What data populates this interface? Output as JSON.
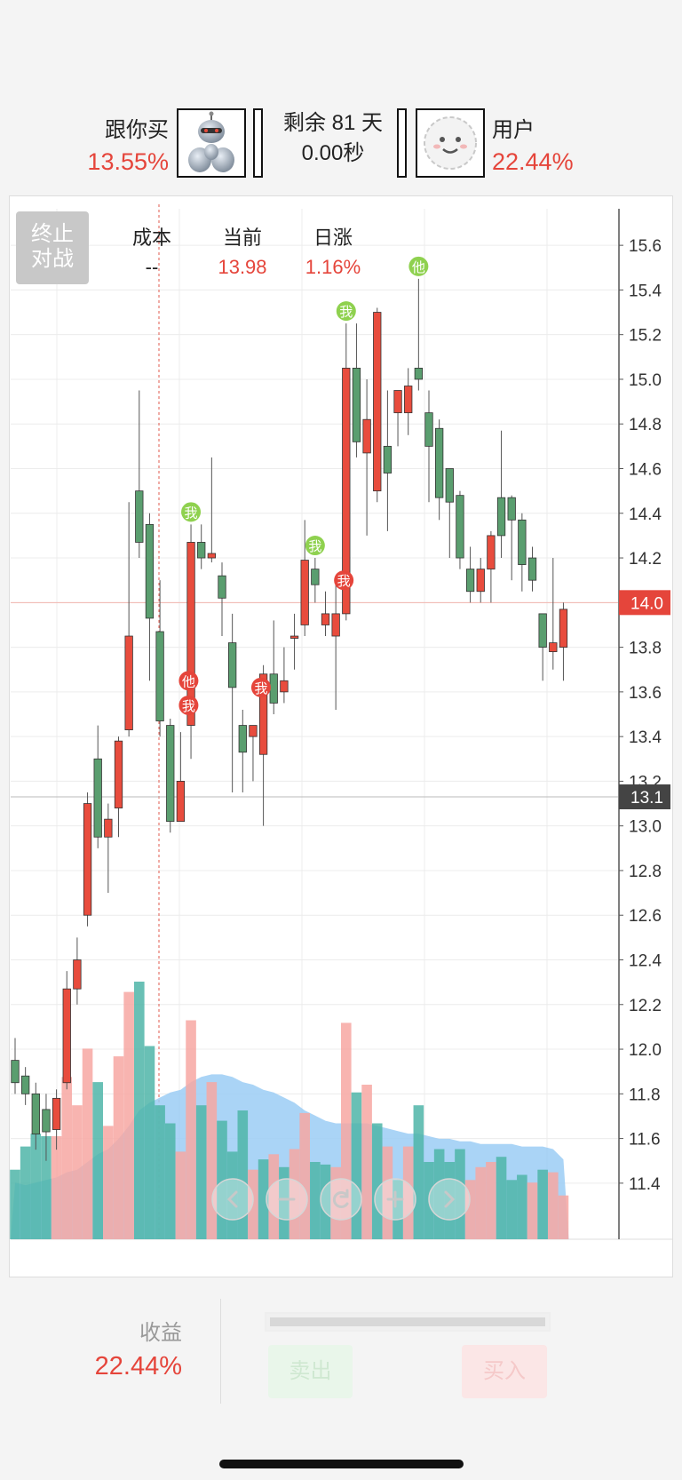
{
  "header": {
    "left_player": {
      "name": "跟你买",
      "return": "13.55%"
    },
    "timer": {
      "days_line": "剩余 81 天",
      "seconds": "0.00秒"
    },
    "right_player": {
      "name": "用户",
      "return": "22.44%"
    }
  },
  "stop_button": {
    "line1": "终止",
    "line2": "对战"
  },
  "stats": [
    {
      "label": "成本",
      "value": "--"
    },
    {
      "label": "当前",
      "value": "13.98"
    },
    {
      "label": "日涨",
      "value": "1.16%"
    }
  ],
  "nav": {
    "prev_icon": "chevron-left-icon",
    "zoom_out_icon": "minus-icon",
    "reset_icon": "refresh-icon",
    "zoom_in_icon": "plus-icon",
    "next_icon": "chevron-right-icon"
  },
  "footer": {
    "profit_label": "收益",
    "profit_value": "22.44%",
    "sell_label": "卖出",
    "buy_label": "买入"
  },
  "colors": {
    "up": "#e84c3d",
    "down": "#5a9e6f",
    "accent_red": "#e5453b",
    "marker_green": "#8fd14f"
  },
  "chart_data": {
    "type": "candlestick",
    "y_range": [
      11.3,
      15.7
    ],
    "y_ticks": [
      "15.6",
      "15.4",
      "15.2",
      "15.0",
      "14.8",
      "14.6",
      "14.4",
      "14.2",
      "14.0",
      "13.8",
      "13.6",
      "13.4",
      "13.2",
      "13.0",
      "12.8",
      "12.6",
      "12.4",
      "12.2",
      "12.0",
      "11.8",
      "11.6",
      "11.4"
    ],
    "current_price_label": "14.0",
    "current_price": 14.0,
    "reference_price_label": "13.1",
    "reference_price": 13.13,
    "ohlc": [
      [
        11.95,
        11.85,
        12.05,
        11.8
      ],
      [
        11.88,
        11.8,
        11.92,
        11.75
      ],
      [
        11.8,
        11.62,
        11.85,
        11.55
      ],
      [
        11.73,
        11.63,
        11.8,
        11.5
      ],
      [
        11.64,
        11.78,
        11.82,
        11.55
      ],
      [
        11.85,
        12.27,
        12.35,
        11.82
      ],
      [
        12.27,
        12.4,
        12.5,
        12.2
      ],
      [
        12.6,
        13.1,
        13.15,
        12.55
      ],
      [
        13.3,
        12.95,
        13.45,
        12.9
      ],
      [
        12.95,
        13.03,
        13.1,
        12.7
      ],
      [
        13.08,
        13.38,
        13.4,
        12.95
      ],
      [
        13.43,
        13.85,
        14.45,
        13.4
      ],
      [
        14.5,
        14.27,
        14.95,
        14.2
      ],
      [
        14.35,
        13.93,
        14.4,
        13.65
      ],
      [
        13.87,
        13.47,
        14.1,
        13.4
      ],
      [
        13.45,
        13.02,
        13.48,
        12.97
      ],
      [
        13.02,
        13.2,
        13.42,
        13.05
      ],
      [
        13.45,
        14.27,
        14.35,
        13.3
      ],
      [
        14.27,
        14.2,
        14.35,
        14.15
      ],
      [
        14.2,
        14.22,
        14.65,
        14.18
      ],
      [
        14.12,
        14.02,
        14.18,
        13.85
      ],
      [
        13.82,
        13.62,
        13.95,
        13.15
      ],
      [
        13.45,
        13.33,
        13.52,
        13.15
      ],
      [
        13.4,
        13.45,
        13.45,
        13.2
      ],
      [
        13.32,
        13.68,
        13.72,
        13.0
      ],
      [
        13.68,
        13.55,
        13.92,
        13.5
      ],
      [
        13.6,
        13.65,
        13.8,
        13.55
      ],
      [
        13.84,
        13.85,
        13.95,
        13.7
      ],
      [
        13.9,
        14.19,
        14.37,
        13.85
      ],
      [
        14.15,
        14.08,
        14.2,
        14.0
      ],
      [
        13.9,
        13.95,
        14.05,
        13.85
      ],
      [
        13.85,
        13.95,
        14.1,
        13.52
      ],
      [
        13.95,
        15.05,
        15.25,
        13.92
      ],
      [
        15.05,
        14.72,
        15.25,
        14.65
      ],
      [
        14.67,
        14.82,
        15.0,
        14.3
      ],
      [
        14.5,
        15.3,
        15.32,
        14.45
      ],
      [
        14.7,
        14.58,
        14.95,
        14.32
      ],
      [
        14.85,
        14.95,
        14.95,
        14.7
      ],
      [
        14.85,
        14.97,
        15.05,
        14.75
      ],
      [
        15.05,
        15.0,
        15.45,
        14.95
      ],
      [
        14.85,
        14.7,
        14.95,
        14.45
      ],
      [
        14.78,
        14.47,
        14.82,
        14.37
      ],
      [
        14.6,
        14.45,
        14.58,
        14.2
      ],
      [
        14.48,
        14.2,
        14.5,
        14.15
      ],
      [
        14.15,
        14.05,
        14.25,
        14.0
      ],
      [
        14.05,
        14.15,
        14.2,
        14.0
      ],
      [
        14.15,
        14.3,
        14.32,
        14.0
      ],
      [
        14.47,
        14.3,
        14.77,
        14.2
      ],
      [
        14.47,
        14.37,
        14.48,
        14.1
      ],
      [
        14.37,
        14.17,
        14.4,
        14.05
      ],
      [
        14.2,
        14.1,
        14.25,
        14.05
      ],
      [
        13.95,
        13.8,
        13.95,
        13.65
      ],
      [
        13.78,
        13.82,
        14.2,
        13.7
      ],
      [
        13.8,
        13.97,
        14.0,
        13.65
      ]
    ],
    "volume_bars": [
      {
        "v": 0.27,
        "up": false
      },
      {
        "v": 0.36,
        "up": false
      },
      {
        "v": 0.41,
        "up": false
      },
      {
        "v": 0.4,
        "up": false
      },
      {
        "v": 0.4,
        "up": true
      },
      {
        "v": 0.63,
        "up": true
      },
      {
        "v": 0.52,
        "up": true
      },
      {
        "v": 0.74,
        "up": true
      },
      {
        "v": 0.61,
        "up": false
      },
      {
        "v": 0.44,
        "up": true
      },
      {
        "v": 0.71,
        "up": true
      },
      {
        "v": 0.96,
        "up": true
      },
      {
        "v": 1.0,
        "up": false
      },
      {
        "v": 0.75,
        "up": false
      },
      {
        "v": 0.52,
        "up": false
      },
      {
        "v": 0.45,
        "up": false
      },
      {
        "v": 0.34,
        "up": true
      },
      {
        "v": 0.85,
        "up": true
      },
      {
        "v": 0.52,
        "up": false
      },
      {
        "v": 0.61,
        "up": true
      },
      {
        "v": 0.46,
        "up": false
      },
      {
        "v": 0.34,
        "up": false
      },
      {
        "v": 0.5,
        "up": false
      },
      {
        "v": 0.27,
        "up": true
      },
      {
        "v": 0.31,
        "up": false
      },
      {
        "v": 0.33,
        "up": true
      },
      {
        "v": 0.28,
        "up": false
      },
      {
        "v": 0.35,
        "up": true
      },
      {
        "v": 0.49,
        "up": true
      },
      {
        "v": 0.3,
        "up": false
      },
      {
        "v": 0.29,
        "up": false
      },
      {
        "v": 0.28,
        "up": true
      },
      {
        "v": 0.84,
        "up": true
      },
      {
        "v": 0.57,
        "up": false
      },
      {
        "v": 0.6,
        "up": true
      },
      {
        "v": 0.45,
        "up": false
      },
      {
        "v": 0.36,
        "up": true
      },
      {
        "v": 0.23,
        "up": false
      },
      {
        "v": 0.36,
        "up": true
      },
      {
        "v": 0.52,
        "up": false
      },
      {
        "v": 0.3,
        "up": false
      },
      {
        "v": 0.35,
        "up": false
      },
      {
        "v": 0.3,
        "up": false
      },
      {
        "v": 0.35,
        "up": false
      },
      {
        "v": 0.23,
        "up": true
      },
      {
        "v": 0.28,
        "up": true
      },
      {
        "v": 0.3,
        "up": true
      },
      {
        "v": 0.32,
        "up": false
      },
      {
        "v": 0.23,
        "up": false
      },
      {
        "v": 0.25,
        "up": false
      },
      {
        "v": 0.22,
        "up": true
      },
      {
        "v": 0.27,
        "up": false
      },
      {
        "v": 0.26,
        "up": true
      },
      {
        "v": 0.17,
        "up": true
      }
    ],
    "volume_ma": [
      0.22,
      0.21,
      0.22,
      0.23,
      0.24,
      0.26,
      0.27,
      0.3,
      0.33,
      0.35,
      0.39,
      0.44,
      0.5,
      0.53,
      0.55,
      0.57,
      0.58,
      0.61,
      0.63,
      0.64,
      0.64,
      0.63,
      0.61,
      0.6,
      0.58,
      0.57,
      0.55,
      0.53,
      0.5,
      0.48,
      0.46,
      0.45,
      0.45,
      0.45,
      0.45,
      0.44,
      0.43,
      0.42,
      0.41,
      0.41,
      0.4,
      0.39,
      0.39,
      0.38,
      0.38,
      0.37,
      0.37,
      0.37,
      0.37,
      0.36,
      0.36,
      0.36,
      0.35,
      0.31
    ],
    "markers": [
      {
        "i": 17,
        "text": "我",
        "color": "green",
        "pos": "above"
      },
      {
        "i": 16,
        "text": "他",
        "color": "red",
        "pos": "beside",
        "price": 13.65
      },
      {
        "i": 16,
        "text": "我",
        "color": "red",
        "pos": "beside",
        "price": 13.54
      },
      {
        "i": 23,
        "text": "我",
        "color": "red",
        "pos": "beside",
        "price": 13.62
      },
      {
        "i": 29,
        "text": "我",
        "color": "green",
        "pos": "above"
      },
      {
        "i": 31,
        "text": "我",
        "color": "red",
        "pos": "beside",
        "price": 14.1
      },
      {
        "i": 32,
        "text": "我",
        "color": "green",
        "pos": "above"
      },
      {
        "i": 39,
        "text": "他",
        "color": "green",
        "pos": "above"
      }
    ]
  }
}
